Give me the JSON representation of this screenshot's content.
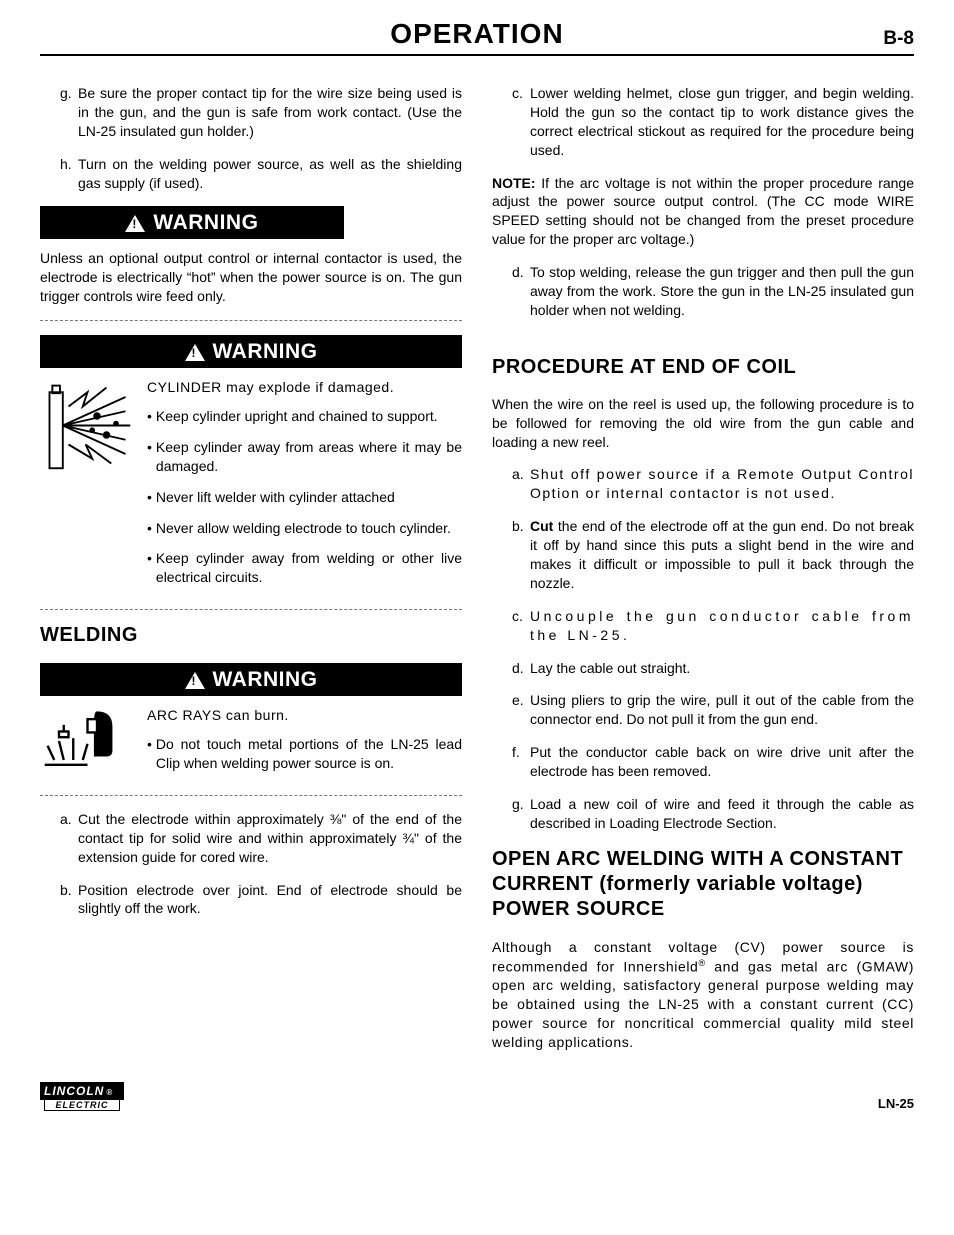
{
  "header": {
    "title": "OPERATION",
    "page_number": "B-8"
  },
  "left": {
    "items_gh": [
      {
        "label": "g.",
        "text": "Be sure the proper contact tip for the wire size being used is in the gun, and the gun is safe from work contact. (Use the LN-25 insulated gun holder.)"
      },
      {
        "label": "h.",
        "text": "Turn on the welding power source, as well as the shielding gas supply (if used)."
      }
    ],
    "warning1": {
      "banner": "WARNING",
      "text": "Unless an optional output control or internal contactor is used, the electrode is electrically “hot” when the power source is on. The gun trigger controls wire feed only."
    },
    "warning2": {
      "banner": "WARNING",
      "lead": "CYLINDER may explode if damaged.",
      "bullets": [
        "Keep cylinder upright and chained to support.",
        "Keep cylinder away from areas where it may be damaged.",
        "Never lift welder with cylinder attached",
        "Never allow welding electrode to touch cylinder.",
        "Keep cylinder away from welding or other live electrical circuits."
      ]
    },
    "welding_head": "WELDING",
    "warning3": {
      "banner": "WARNING",
      "lead": "ARC RAYS can burn.",
      "bullet": "Do not touch metal portions of the LN-25 lead Clip when welding power source is on."
    },
    "items_ab": [
      {
        "label": "a.",
        "text": "Cut the electrode within approximately ⅜\" of the end of the contact tip for solid wire and within approximately ¾\" of the extension guide for cored wire."
      },
      {
        "label": "b.",
        "text": "Position electrode over joint. End of electrode should be slightly off the work."
      }
    ]
  },
  "right": {
    "item_c": {
      "label": "c.",
      "text": "Lower welding helmet, close gun trigger, and begin welding. Hold the gun so the contact tip to work distance gives the correct electrical stickout as required for the procedure being used."
    },
    "note": {
      "lead": "NOTE:",
      "text": " If the arc voltage is not within the proper procedure range adjust the power source output control. (The CC mode WIRE SPEED setting should not be changed from the preset procedure value for the proper arc voltage.)"
    },
    "item_d": {
      "label": "d.",
      "text": "To stop welding, release the gun trigger and then pull the gun away from the work. Store the gun in the LN-25 insulated gun holder when not welding."
    },
    "proc_head": "PROCEDURE AT END OF COIL",
    "proc_intro": "When the wire on the reel is used up, the following procedure is to be followed for removing the old wire from the gun cable and loading a new reel.",
    "proc_items": [
      {
        "label": "a.",
        "pre": "",
        "bold": "",
        "text": "Shut off power source if a Remote Output Control Option or internal contactor is not used.",
        "spread": true
      },
      {
        "label": "b.",
        "pre": "",
        "bold": "Cut",
        "text": " the end of the electrode off at the gun end. Do not break it off by hand since this puts a slight bend in the wire and makes it difficult or impossible to pull it back through the nozzle."
      },
      {
        "label": "c.",
        "pre": "",
        "bold": "",
        "text": "Uncouple the gun conductor cable from the LN-25.",
        "spread2": true
      },
      {
        "label": "d.",
        "pre": "",
        "bold": "",
        "text": "Lay the cable out straight."
      },
      {
        "label": "e.",
        "pre": "",
        "bold": "",
        "text": "Using pliers to grip the wire, pull it out of the cable from the connector end. Do not pull it from the gun end."
      },
      {
        "label": "f.",
        "pre": "",
        "bold": "",
        "text": "Put the conductor cable back on wire drive unit after the electrode has been removed."
      },
      {
        "label": "g.",
        "pre": "",
        "bold": "",
        "text": "Load a new coil of wire and feed it through the cable as described in Loading Electrode Section."
      }
    ],
    "openarc_head": "OPEN ARC WELDING WITH A CONSTANT CURRENT (formerly variable voltage) POWER SOURCE",
    "openarc_text_pre": "Although a constant voltage (CV) power source is recommended for Innershield",
    "openarc_text_post": " and gas metal arc (GMAW) open arc welding, satisfactory general purpose welding may be obtained using the LN-25 with a constant current (CC) power source for noncritical commercial quality mild steel welding applications."
  },
  "footer": {
    "logo_top": "LINCOLN",
    "logo_reg": "®",
    "logo_bottom": "ELECTRIC",
    "model": "LN-25"
  }
}
